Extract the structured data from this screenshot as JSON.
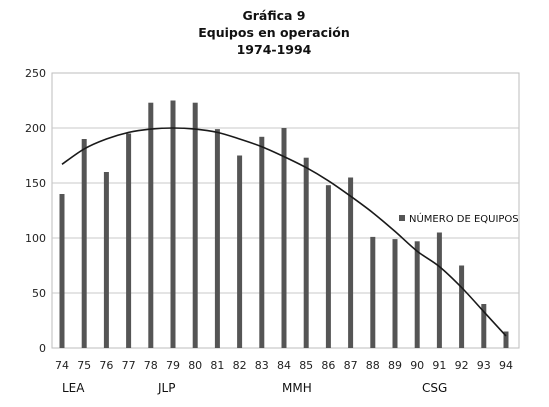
{
  "chart_data": {
    "type": "bar",
    "title_lines": [
      "Gráfica 9",
      "Equipos en operación",
      "1974-1994"
    ],
    "categories": [
      "74",
      "75",
      "76",
      "77",
      "78",
      "79",
      "80",
      "81",
      "82",
      "83",
      "84",
      "85",
      "86",
      "87",
      "88",
      "89",
      "90",
      "91",
      "92",
      "93",
      "94"
    ],
    "series": [
      {
        "name": "NÚMERO DE EQUIPOS",
        "color": "#555555",
        "values": [
          140,
          190,
          160,
          195,
          223,
          225,
          223,
          199,
          175,
          192,
          200,
          173,
          148,
          155,
          101,
          99,
          97,
          105,
          75,
          40,
          15
        ]
      }
    ],
    "trendline": {
      "type": "polynomial",
      "color": "#1a1a1a",
      "values": [
        167,
        181,
        190,
        196,
        199,
        200,
        199,
        196,
        190,
        183,
        174,
        164,
        152,
        138,
        123,
        106,
        88,
        74,
        55,
        33,
        11
      ]
    },
    "ylim": [
      0,
      250
    ],
    "yticks": [
      0,
      50,
      100,
      150,
      200,
      250
    ],
    "xlabel": "",
    "ylabel": "",
    "grid": "horizontal",
    "legend_position": "right",
    "period_labels": [
      "LEA",
      "JLP",
      "MMH",
      "CSG"
    ]
  }
}
